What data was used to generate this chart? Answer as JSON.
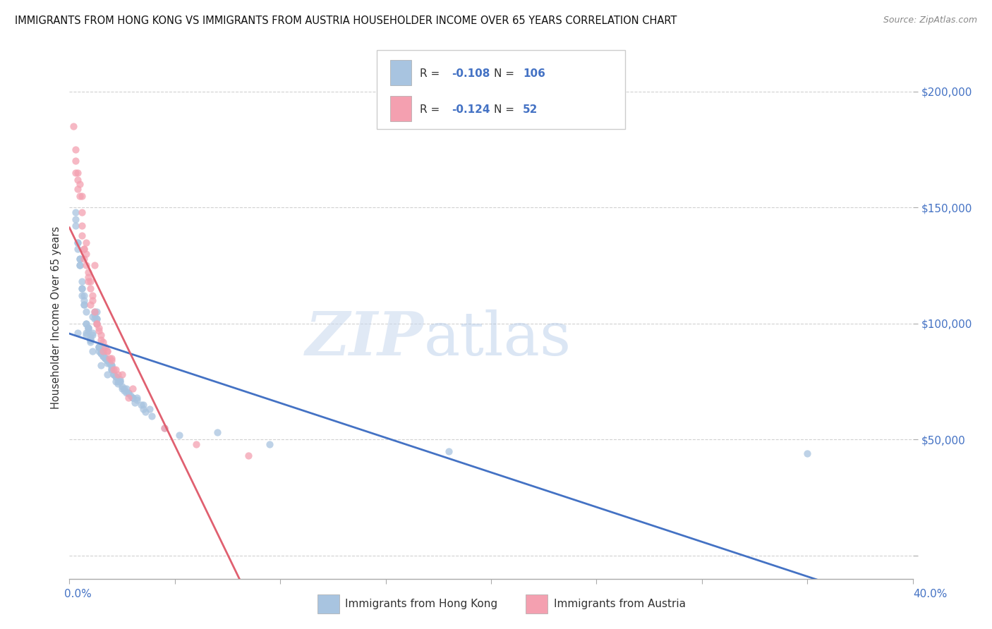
{
  "title": "IMMIGRANTS FROM HONG KONG VS IMMIGRANTS FROM AUSTRIA HOUSEHOLDER INCOME OVER 65 YEARS CORRELATION CHART",
  "source": "Source: ZipAtlas.com",
  "ylabel": "Householder Income Over 65 years",
  "y_ticks": [
    0,
    50000,
    100000,
    150000,
    200000
  ],
  "x_range": [
    0.0,
    40.0
  ],
  "y_range": [
    -10000,
    215000
  ],
  "r_hk": -0.108,
  "n_hk": 106,
  "r_at": -0.124,
  "n_at": 52,
  "color_hk": "#a8c4e0",
  "color_at": "#f4a0b0",
  "color_hk_line": "#4472c4",
  "color_at_line": "#e06070",
  "color_at_dash": "#f4a0b0",
  "legend_label_hk": "Immigrants from Hong Kong",
  "legend_label_at": "Immigrants from Austria",
  "watermark_zip": "ZIP",
  "watermark_atlas": "atlas",
  "background_color": "#ffffff",
  "hk_scatter_x": [
    0.5,
    1.3,
    0.8,
    1.1,
    0.6,
    1.8,
    2.5,
    1.0,
    1.5,
    0.9,
    2.2,
    1.7,
    3.0,
    2.8,
    0.7,
    1.4,
    0.4,
    2.0,
    1.6,
    3.5,
    2.4,
    1.2,
    0.3,
    2.7,
    1.9,
    3.2,
    2.1,
    0.6,
    1.3,
    0.8,
    1.5,
    2.3,
    1.0,
    1.7,
    2.6,
    0.5,
    3.1,
    1.4,
    0.9,
    2.0,
    1.1,
    0.7,
    3.8,
    1.6,
    2.9,
    0.4,
    1.8,
    2.4,
    1.2,
    0.3,
    1.0,
    2.2,
    0.8,
    1.5,
    3.4,
    1.7,
    2.0,
    0.6,
    1.3,
    2.6,
    0.9,
    1.1,
    3.0,
    1.4,
    2.8,
    0.7,
    1.6,
    2.3,
    1.0,
    3.5,
    0.5,
    1.8,
    2.1,
    0.4,
    1.2,
    2.5,
    0.8,
    3.2,
    1.5,
    2.0,
    0.6,
    1.7,
    2.4,
    1.0,
    0.3,
    1.3,
    2.7,
    0.9,
    1.6,
    2.2,
    0.7,
    3.6,
    1.4,
    1.1,
    2.0,
    0.5,
    1.8,
    3.9,
    4.5,
    5.2,
    7.0,
    9.5,
    18.0,
    35.0,
    0.4,
    0.8
  ],
  "hk_scatter_y": [
    125000,
    105000,
    95000,
    88000,
    115000,
    78000,
    72000,
    92000,
    82000,
    98000,
    75000,
    85000,
    68000,
    70000,
    108000,
    88000,
    135000,
    80000,
    90000,
    65000,
    75000,
    102000,
    142000,
    72000,
    83000,
    68000,
    78000,
    118000,
    100000,
    96000,
    87000,
    74000,
    93000,
    85000,
    71000,
    128000,
    66000,
    90000,
    97000,
    82000,
    103000,
    112000,
    63000,
    87000,
    69000,
    132000,
    84000,
    76000,
    105000,
    148000,
    94000,
    77000,
    100000,
    88000,
    65000,
    85000,
    80000,
    115000,
    102000,
    72000,
    98000,
    95000,
    68000,
    90000,
    70000,
    108000,
    86000,
    75000,
    93000,
    63000,
    125000,
    83000,
    78000,
    96000,
    104000,
    73000,
    100000,
    67000,
    87000,
    81000,
    112000,
    85000,
    75000,
    93000,
    145000,
    102000,
    70000,
    98000,
    86000,
    77000,
    110000,
    62000,
    90000,
    96000,
    82000,
    128000,
    84000,
    60000,
    55000,
    52000,
    53000,
    48000,
    45000,
    44000,
    135000,
    105000
  ],
  "at_scatter_x": [
    0.2,
    0.4,
    0.6,
    0.3,
    0.5,
    0.8,
    1.0,
    0.7,
    1.2,
    0.9,
    1.5,
    1.1,
    0.4,
    1.4,
    0.6,
    1.8,
    1.0,
    0.3,
    2.0,
    1.3,
    0.8,
    1.6,
    0.5,
    2.2,
    0.9,
    1.1,
    1.7,
    0.6,
    2.5,
    1.4,
    0.7,
    2.0,
    1.2,
    0.4,
    1.8,
    0.9,
    3.0,
    1.5,
    0.6,
    2.3,
    1.0,
    0.8,
    2.8,
    1.6,
    0.3,
    1.3,
    2.1,
    0.7,
    1.9,
    4.5,
    6.0,
    8.5
  ],
  "at_scatter_y": [
    185000,
    165000,
    155000,
    175000,
    160000,
    135000,
    118000,
    128000,
    105000,
    122000,
    95000,
    110000,
    162000,
    98000,
    148000,
    88000,
    115000,
    170000,
    85000,
    100000,
    130000,
    92000,
    155000,
    80000,
    120000,
    112000,
    90000,
    142000,
    78000,
    97000,
    132000,
    84000,
    125000,
    158000,
    88000,
    118000,
    72000,
    93000,
    138000,
    78000,
    108000,
    125000,
    68000,
    88000,
    165000,
    100000,
    80000,
    132000,
    85000,
    55000,
    48000,
    43000
  ]
}
